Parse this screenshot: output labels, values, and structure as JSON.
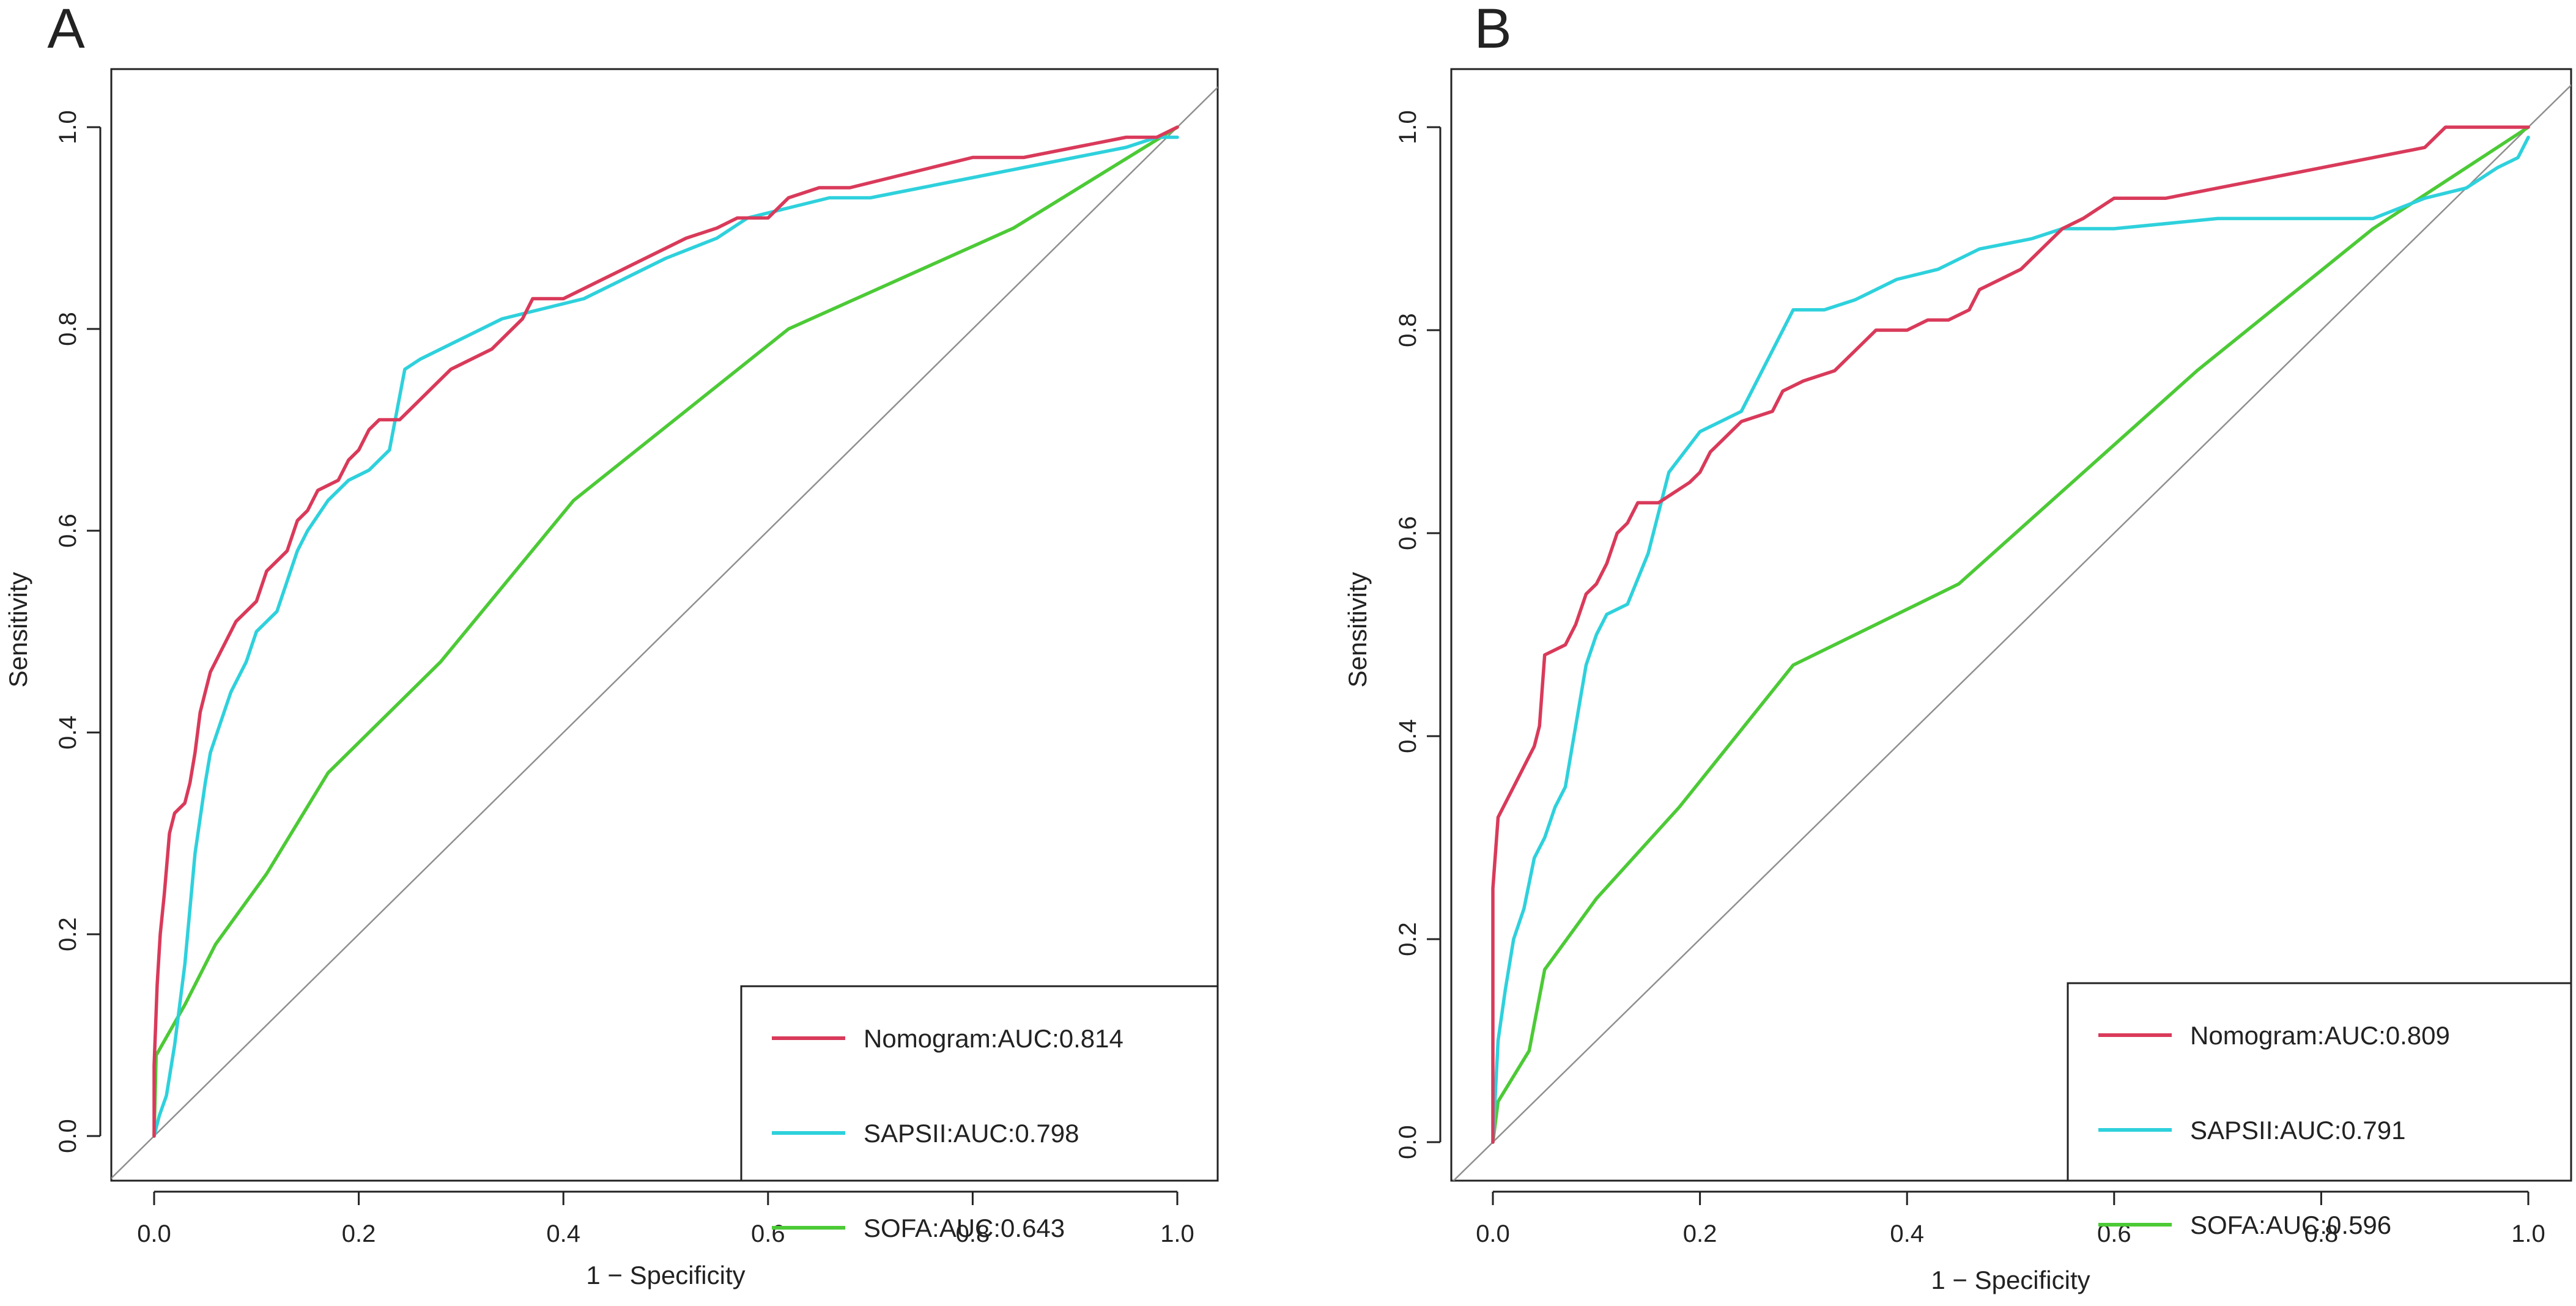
{
  "chart_data": [
    {
      "panel_label": "A",
      "type": "line",
      "title": "",
      "xlabel": "1 − Specificity",
      "ylabel": "Sensitivity",
      "xlim": [
        0,
        1
      ],
      "ylim": [
        0,
        1
      ],
      "x_ticks": [
        "0.0",
        "0.2",
        "0.4",
        "0.6",
        "0.8",
        "1.0"
      ],
      "y_ticks": [
        "0.0",
        "0.2",
        "0.4",
        "0.6",
        "0.8",
        "1.0"
      ],
      "legend_position": "bottom-right",
      "reference_line": [
        [
          0,
          0
        ],
        [
          1,
          1
        ]
      ],
      "series": [
        {
          "name": "Nomogram:AUC:0.814",
          "color": "#d93a5a",
          "points": [
            [
              0,
              0
            ],
            [
              0,
              0.07
            ],
            [
              0.003,
              0.15
            ],
            [
              0.006,
              0.2
            ],
            [
              0.01,
              0.24
            ],
            [
              0.015,
              0.3
            ],
            [
              0.02,
              0.32
            ],
            [
              0.03,
              0.33
            ],
            [
              0.035,
              0.35
            ],
            [
              0.04,
              0.38
            ],
            [
              0.045,
              0.42
            ],
            [
              0.05,
              0.44
            ],
            [
              0.055,
              0.46
            ],
            [
              0.06,
              0.47
            ],
            [
              0.065,
              0.48
            ],
            [
              0.07,
              0.49
            ],
            [
              0.08,
              0.51
            ],
            [
              0.09,
              0.52
            ],
            [
              0.1,
              0.53
            ],
            [
              0.11,
              0.56
            ],
            [
              0.12,
              0.57
            ],
            [
              0.13,
              0.58
            ],
            [
              0.14,
              0.61
            ],
            [
              0.15,
              0.62
            ],
            [
              0.16,
              0.64
            ],
            [
              0.18,
              0.65
            ],
            [
              0.19,
              0.67
            ],
            [
              0.2,
              0.68
            ],
            [
              0.21,
              0.7
            ],
            [
              0.22,
              0.71
            ],
            [
              0.24,
              0.71
            ],
            [
              0.25,
              0.72
            ],
            [
              0.27,
              0.74
            ],
            [
              0.29,
              0.76
            ],
            [
              0.31,
              0.77
            ],
            [
              0.33,
              0.78
            ],
            [
              0.35,
              0.8
            ],
            [
              0.36,
              0.81
            ],
            [
              0.37,
              0.83
            ],
            [
              0.4,
              0.83
            ],
            [
              0.42,
              0.84
            ],
            [
              0.44,
              0.85
            ],
            [
              0.46,
              0.86
            ],
            [
              0.48,
              0.87
            ],
            [
              0.5,
              0.88
            ],
            [
              0.52,
              0.89
            ],
            [
              0.55,
              0.9
            ],
            [
              0.57,
              0.91
            ],
            [
              0.6,
              0.91
            ],
            [
              0.62,
              0.93
            ],
            [
              0.65,
              0.94
            ],
            [
              0.68,
              0.94
            ],
            [
              0.72,
              0.95
            ],
            [
              0.76,
              0.96
            ],
            [
              0.8,
              0.97
            ],
            [
              0.85,
              0.97
            ],
            [
              0.9,
              0.98
            ],
            [
              0.95,
              0.99
            ],
            [
              0.98,
              0.99
            ],
            [
              1,
              1
            ]
          ]
        },
        {
          "name": "SAPSII:AUC:0.798",
          "color": "#2ed1dc",
          "points": [
            [
              0,
              0
            ],
            [
              0.005,
              0.02
            ],
            [
              0.012,
              0.04
            ],
            [
              0.02,
              0.09
            ],
            [
              0.03,
              0.17
            ],
            [
              0.04,
              0.28
            ],
            [
              0.05,
              0.35
            ],
            [
              0.055,
              0.38
            ],
            [
              0.065,
              0.41
            ],
            [
              0.075,
              0.44
            ],
            [
              0.09,
              0.47
            ],
            [
              0.1,
              0.5
            ],
            [
              0.12,
              0.52
            ],
            [
              0.13,
              0.55
            ],
            [
              0.14,
              0.58
            ],
            [
              0.15,
              0.6
            ],
            [
              0.17,
              0.63
            ],
            [
              0.19,
              0.65
            ],
            [
              0.21,
              0.66
            ],
            [
              0.23,
              0.68
            ],
            [
              0.245,
              0.76
            ],
            [
              0.26,
              0.77
            ],
            [
              0.3,
              0.79
            ],
            [
              0.34,
              0.81
            ],
            [
              0.38,
              0.82
            ],
            [
              0.42,
              0.83
            ],
            [
              0.46,
              0.85
            ],
            [
              0.5,
              0.87
            ],
            [
              0.55,
              0.89
            ],
            [
              0.58,
              0.91
            ],
            [
              0.62,
              0.92
            ],
            [
              0.66,
              0.93
            ],
            [
              0.7,
              0.93
            ],
            [
              0.75,
              0.94
            ],
            [
              0.8,
              0.95
            ],
            [
              0.85,
              0.96
            ],
            [
              0.9,
              0.97
            ],
            [
              0.95,
              0.98
            ],
            [
              0.98,
              0.99
            ],
            [
              1,
              0.99
            ]
          ]
        },
        {
          "name": "SOFA:AUC:0.643",
          "color": "#4cca36",
          "points": [
            [
              0,
              0
            ],
            [
              0.002,
              0.08
            ],
            [
              0.03,
              0.13
            ],
            [
              0.06,
              0.19
            ],
            [
              0.11,
              0.26
            ],
            [
              0.17,
              0.36
            ],
            [
              0.28,
              0.47
            ],
            [
              0.41,
              0.63
            ],
            [
              0.62,
              0.8
            ],
            [
              0.84,
              0.9
            ],
            [
              1,
              1
            ]
          ]
        }
      ]
    },
    {
      "panel_label": "B",
      "type": "line",
      "title": "",
      "xlabel": "1 − Specificity",
      "ylabel": "Sensitivity",
      "xlim": [
        0,
        1
      ],
      "ylim": [
        0,
        1
      ],
      "x_ticks": [
        "0.0",
        "0.2",
        "0.4",
        "0.6",
        "0.8",
        "1.0"
      ],
      "y_ticks": [
        "0.0",
        "0.2",
        "0.4",
        "0.6",
        "0.8",
        "1.0"
      ],
      "legend_position": "bottom-right",
      "reference_line": [
        [
          0,
          0
        ],
        [
          1,
          1
        ]
      ],
      "series": [
        {
          "name": "Nomogram:AUC:0.809",
          "color": "#d93a5a",
          "points": [
            [
              0,
              0
            ],
            [
              0,
              0.25
            ],
            [
              0.005,
              0.32
            ],
            [
              0.015,
              0.34
            ],
            [
              0.02,
              0.35
            ],
            [
              0.03,
              0.37
            ],
            [
              0.04,
              0.39
            ],
            [
              0.045,
              0.41
            ],
            [
              0.05,
              0.48
            ],
            [
              0.07,
              0.49
            ],
            [
              0.08,
              0.51
            ],
            [
              0.09,
              0.54
            ],
            [
              0.1,
              0.55
            ],
            [
              0.11,
              0.57
            ],
            [
              0.12,
              0.6
            ],
            [
              0.13,
              0.61
            ],
            [
              0.14,
              0.63
            ],
            [
              0.16,
              0.63
            ],
            [
              0.19,
              0.65
            ],
            [
              0.2,
              0.66
            ],
            [
              0.21,
              0.68
            ],
            [
              0.22,
              0.69
            ],
            [
              0.23,
              0.7
            ],
            [
              0.24,
              0.71
            ],
            [
              0.27,
              0.72
            ],
            [
              0.28,
              0.74
            ],
            [
              0.3,
              0.75
            ],
            [
              0.33,
              0.76
            ],
            [
              0.35,
              0.78
            ],
            [
              0.37,
              0.8
            ],
            [
              0.4,
              0.8
            ],
            [
              0.42,
              0.81
            ],
            [
              0.44,
              0.81
            ],
            [
              0.46,
              0.82
            ],
            [
              0.47,
              0.84
            ],
            [
              0.49,
              0.85
            ],
            [
              0.51,
              0.86
            ],
            [
              0.53,
              0.88
            ],
            [
              0.55,
              0.9
            ],
            [
              0.57,
              0.91
            ],
            [
              0.6,
              0.93
            ],
            [
              0.65,
              0.93
            ],
            [
              0.7,
              0.94
            ],
            [
              0.75,
              0.95
            ],
            [
              0.8,
              0.96
            ],
            [
              0.85,
              0.97
            ],
            [
              0.9,
              0.98
            ],
            [
              0.92,
              1
            ],
            [
              0.96,
              1
            ],
            [
              1,
              1
            ]
          ]
        },
        {
          "name": "SAPSII:AUC:0.791",
          "color": "#2ed1dc",
          "points": [
            [
              0,
              0
            ],
            [
              0.005,
              0.1
            ],
            [
              0.012,
              0.15
            ],
            [
              0.02,
              0.2
            ],
            [
              0.03,
              0.23
            ],
            [
              0.04,
              0.28
            ],
            [
              0.05,
              0.3
            ],
            [
              0.06,
              0.33
            ],
            [
              0.07,
              0.35
            ],
            [
              0.08,
              0.41
            ],
            [
              0.09,
              0.47
            ],
            [
              0.1,
              0.5
            ],
            [
              0.11,
              0.52
            ],
            [
              0.13,
              0.53
            ],
            [
              0.15,
              0.58
            ],
            [
              0.17,
              0.66
            ],
            [
              0.2,
              0.7
            ],
            [
              0.24,
              0.72
            ],
            [
              0.26,
              0.76
            ],
            [
              0.29,
              0.82
            ],
            [
              0.32,
              0.82
            ],
            [
              0.35,
              0.83
            ],
            [
              0.39,
              0.85
            ],
            [
              0.43,
              0.86
            ],
            [
              0.47,
              0.88
            ],
            [
              0.52,
              0.89
            ],
            [
              0.55,
              0.9
            ],
            [
              0.6,
              0.9
            ],
            [
              0.7,
              0.91
            ],
            [
              0.8,
              0.91
            ],
            [
              0.85,
              0.91
            ],
            [
              0.9,
              0.93
            ],
            [
              0.94,
              0.94
            ],
            [
              0.97,
              0.96
            ],
            [
              0.99,
              0.97
            ],
            [
              1,
              0.99
            ]
          ]
        },
        {
          "name": "SOFA:AUC:0.596",
          "color": "#4cca36",
          "points": [
            [
              0,
              0
            ],
            [
              0.005,
              0.04
            ],
            [
              0.035,
              0.09
            ],
            [
              0.05,
              0.17
            ],
            [
              0.1,
              0.24
            ],
            [
              0.18,
              0.33
            ],
            [
              0.29,
              0.47
            ],
            [
              0.45,
              0.55
            ],
            [
              0.68,
              0.76
            ],
            [
              0.85,
              0.9
            ],
            [
              1,
              1
            ]
          ]
        }
      ]
    }
  ]
}
